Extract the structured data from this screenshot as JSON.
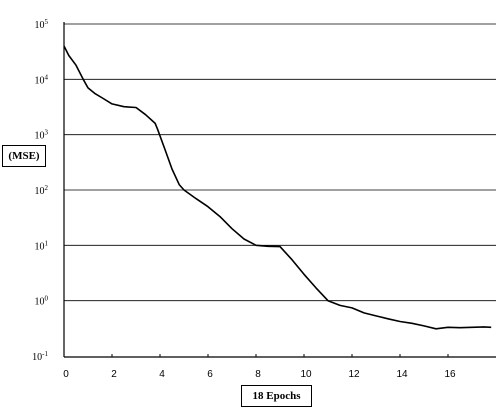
{
  "chart_data": {
    "type": "line",
    "title": "",
    "xlabel": "18 Epochs",
    "ylabel": "(MSE)",
    "xlim": [
      0,
      18
    ],
    "ylim": [
      0.1,
      100000
    ],
    "yscale": "log",
    "grid": "horizontal",
    "line_color": "#000000",
    "x_ticks": [
      "0",
      "2",
      "4",
      "6",
      "8",
      "10",
      "12",
      "14",
      "16"
    ],
    "y_ticks": [
      {
        "base": "10",
        "exp": "5",
        "value": 100000
      },
      {
        "base": "10",
        "exp": "4",
        "value": 10000
      },
      {
        "base": "10",
        "exp": "3",
        "value": 1000
      },
      {
        "base": "10",
        "exp": "2",
        "value": 100
      },
      {
        "base": "10",
        "exp": "1",
        "value": 10
      },
      {
        "base": "10",
        "exp": "0",
        "value": 1
      },
      {
        "base": "10",
        "exp": "-1",
        "value": 0.1
      }
    ],
    "series": [
      {
        "x": [
          0,
          0.2,
          0.5,
          0.8,
          1.0,
          1.3,
          1.6,
          2.0,
          2.5,
          3.0,
          3.4,
          3.8,
          3.9,
          4.2,
          4.5,
          4.8,
          5.0,
          5.5,
          6.0,
          6.5,
          7.0,
          7.5,
          8.0,
          8.5,
          9.0,
          9.5,
          10.0,
          10.5,
          11.0,
          11.5,
          12.0,
          12.5,
          13.0,
          13.5,
          14.0,
          14.5,
          15.0,
          15.5,
          16.0,
          16.5,
          17.0,
          17.5,
          17.8
        ],
        "y": [
          40000,
          27000,
          18000,
          10000,
          7000,
          5500,
          4600,
          3600,
          3200,
          3100,
          2300,
          1600,
          1250,
          550,
          240,
          125,
          100,
          70,
          50,
          33,
          20,
          13,
          10,
          9.6,
          9.5,
          5.5,
          3,
          1.7,
          1.0,
          0.82,
          0.74,
          0.6,
          0.53,
          0.47,
          0.42,
          0.39,
          0.35,
          0.31,
          0.33,
          0.325,
          0.33,
          0.335,
          0.33
        ]
      }
    ]
  }
}
